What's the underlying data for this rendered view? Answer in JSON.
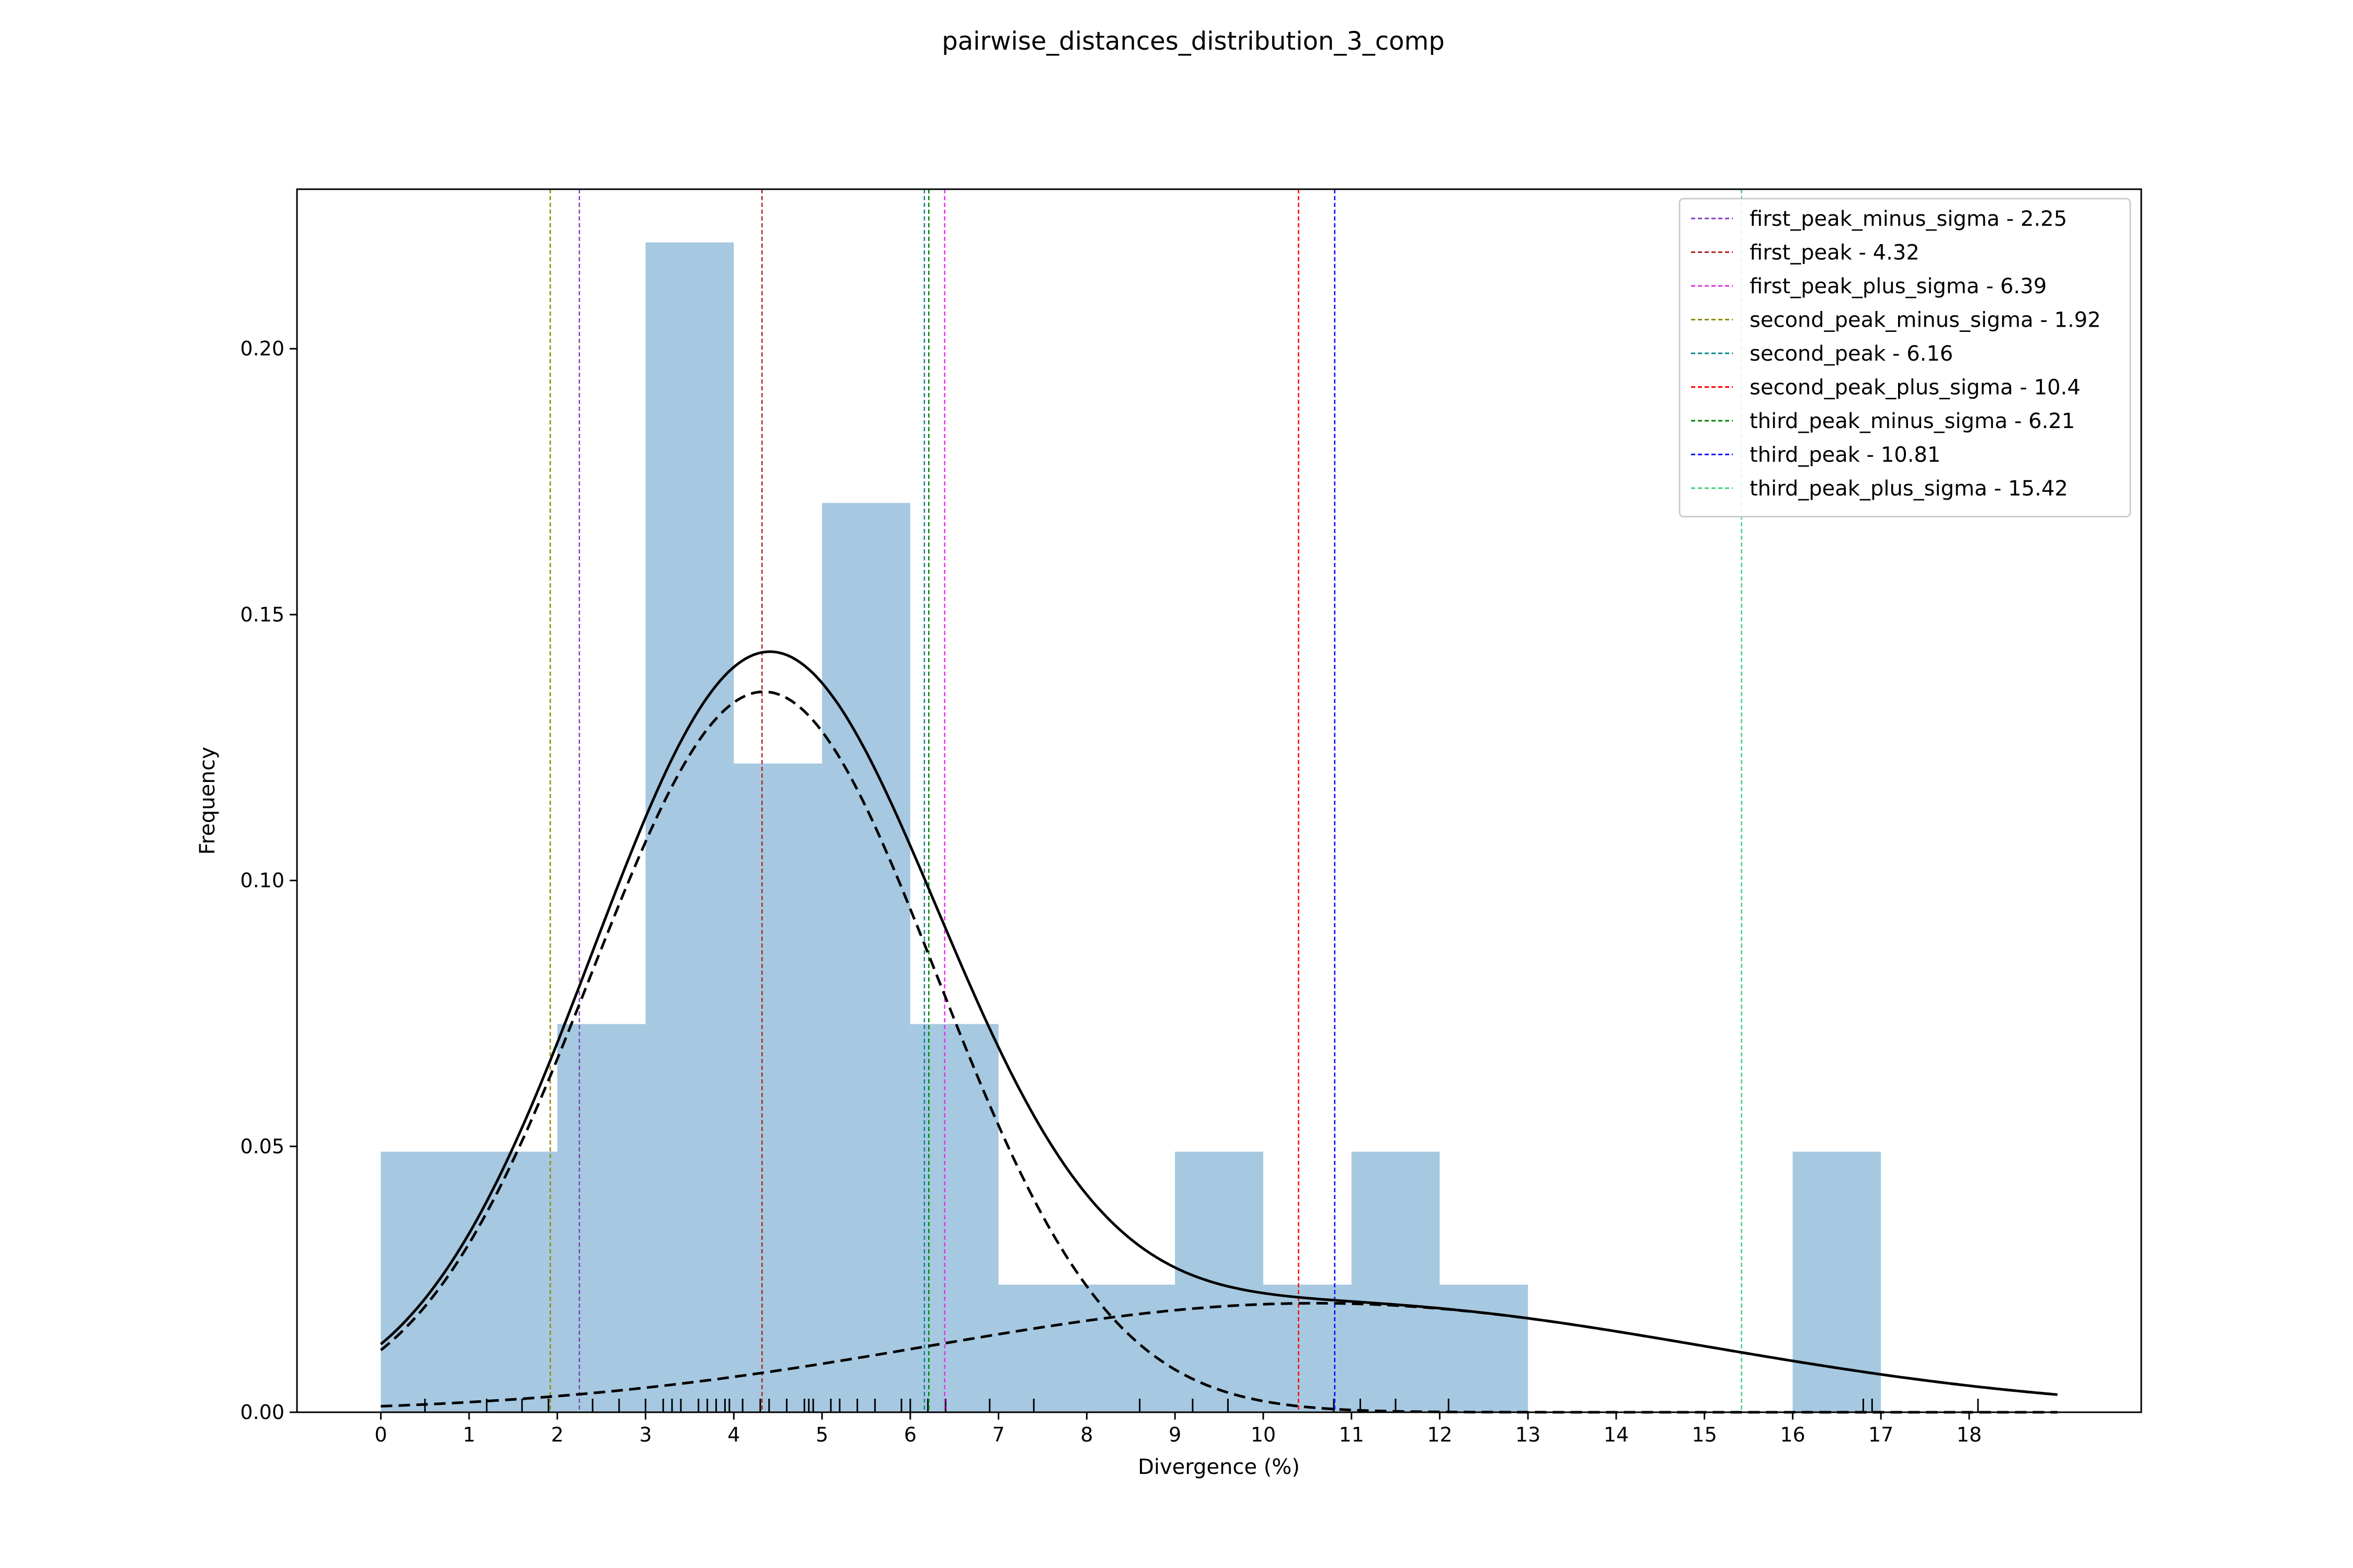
{
  "chart_data": {
    "type": "histogram",
    "title": "pairwise_distances_distribution_3_comp",
    "xlabel": "Divergence (%)",
    "ylabel": "Frequency",
    "xlim": [
      -0.95,
      19.95
    ],
    "ylim": [
      0,
      0.23
    ],
    "xticks": [
      0,
      1,
      2,
      3,
      4,
      5,
      6,
      7,
      8,
      9,
      10,
      11,
      12,
      13,
      14,
      15,
      16,
      17,
      18
    ],
    "yticks": [
      0.0,
      0.05,
      0.1,
      0.15,
      0.2
    ],
    "ytick_labels": [
      "0.00",
      "0.05",
      "0.10",
      "0.15",
      "0.20"
    ],
    "bar_color": "#a6c8e0",
    "bins": [
      {
        "x0": 0,
        "x1": 2,
        "value": 0.049
      },
      {
        "x0": 2,
        "x1": 3,
        "value": 0.073
      },
      {
        "x0": 3,
        "x1": 4,
        "value": 0.22
      },
      {
        "x0": 4,
        "x1": 5,
        "value": 0.122
      },
      {
        "x0": 5,
        "x1": 6,
        "value": 0.171
      },
      {
        "x0": 6,
        "x1": 7,
        "value": 0.073
      },
      {
        "x0": 7,
        "x1": 9,
        "value": 0.024
      },
      {
        "x0": 9,
        "x1": 10,
        "value": 0.049
      },
      {
        "x0": 10,
        "x1": 11,
        "value": 0.024
      },
      {
        "x0": 11,
        "x1": 12,
        "value": 0.049
      },
      {
        "x0": 12,
        "x1": 13,
        "value": 0.024
      },
      {
        "x0": 16,
        "x1": 17,
        "value": 0.049
      }
    ],
    "rug": [
      0.5,
      1.2,
      1.6,
      1.9,
      2.4,
      2.7,
      3.0,
      3.2,
      3.3,
      3.4,
      3.6,
      3.7,
      3.8,
      3.9,
      3.95,
      4.1,
      4.3,
      4.4,
      4.6,
      4.8,
      4.85,
      4.9,
      5.1,
      5.2,
      5.4,
      5.6,
      5.9,
      6.0,
      6.2,
      6.4,
      6.9,
      7.4,
      8.6,
      9.2,
      9.6,
      10.8,
      11.1,
      11.5,
      12.1,
      16.8,
      16.9,
      18.1
    ],
    "components": [
      {
        "style": "dashed",
        "mu": 4.34,
        "sigma": 1.96,
        "peak": 0.1355
      },
      {
        "style": "dashed",
        "mu": 10.6,
        "sigma": 4.4,
        "peak": 0.0205
      }
    ],
    "curve_range": [
      0,
      19
    ],
    "legend_position": "upper right",
    "vlines": [
      {
        "label": "first_peak_minus_sigma - 2.25",
        "x": 2.25,
        "color": "#7f3fbf"
      },
      {
        "label": "first_peak - 4.32",
        "x": 4.32,
        "color": "#b22222"
      },
      {
        "label": "first_peak_plus_sigma - 6.39",
        "x": 6.39,
        "color": "#e033e0"
      },
      {
        "label": "second_peak_minus_sigma - 1.92",
        "x": 1.92,
        "color": "#8b8b00"
      },
      {
        "label": "second_peak - 6.16",
        "x": 6.16,
        "color": "#008b8b"
      },
      {
        "label": "second_peak_plus_sigma - 10.4",
        "x": 10.4,
        "color": "#ff0000"
      },
      {
        "label": "third_peak_minus_sigma - 6.21",
        "x": 6.21,
        "color": "#008000"
      },
      {
        "label": "third_peak - 10.81",
        "x": 10.81,
        "color": "#0000ff"
      },
      {
        "label": "third_peak_plus_sigma - 15.42",
        "x": 15.42,
        "color": "#3fcf7f"
      }
    ]
  }
}
